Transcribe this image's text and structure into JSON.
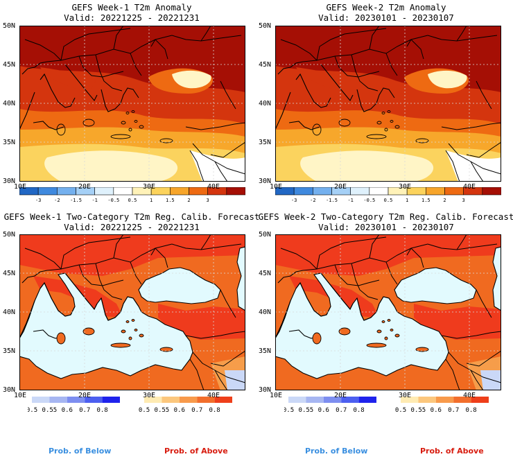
{
  "colors": {
    "sea": "#e2fafe",
    "land_above_strong": "#ef3b1d",
    "land_above_mid": "#f06a20",
    "land_above_light": "#f69d4a",
    "anom_c3": "#a50f05",
    "anom_c2": "#d4350e",
    "anom_c15": "#ee6a12",
    "anom_c1": "#f7a72b",
    "anom_c05": "#fbd35e",
    "anom_c0": "#fff5c6",
    "label_below": "#3a8fe0",
    "label_above": "#d81c0f"
  },
  "axes": {
    "y_top": [
      "50N",
      "45N",
      "40N",
      "35N",
      "30N"
    ],
    "x_top": [
      "10E",
      "20E",
      "30E",
      "40E"
    ],
    "y_bot": [
      "50N",
      "45N",
      "40N",
      "35N",
      "30N"
    ],
    "x_bot": [
      "10E",
      "20E",
      "30E",
      "40E"
    ]
  },
  "panels": {
    "tl": {
      "title": "GEFS Week-1 T2m Anomaly",
      "valid": "Valid: 20221225 - 20221231"
    },
    "tr": {
      "title": "GEFS Week-2 T2m Anomaly",
      "valid": "Valid: 20230101 - 20230107"
    },
    "bl": {
      "title": "GEFS Week-1 Two-Category T2m Reg. Calib. Forecast",
      "valid": "Valid: 20221225 - 20221231"
    },
    "br": {
      "title": "GEFS Week-2 Two-Category T2m Reg. Calib. Forecast",
      "valid": "Valid: 20230101 - 20230107"
    }
  },
  "anomaly_legend": {
    "ticks": [
      "-3",
      "-2",
      "-1.5",
      "-1",
      "-0.5",
      "0.5",
      "1",
      "1.5",
      "2",
      "3"
    ],
    "colors": [
      "#2167c4",
      "#3f89de",
      "#74b0ee",
      "#a5d0f6",
      "#dff1fc",
      "#ffffff",
      "#fff2b8",
      "#fcd35c",
      "#f7a52a",
      "#ee6a12",
      "#d4350e",
      "#a50f05"
    ]
  },
  "prob_legend": {
    "below_ticks": [
      "0.5",
      "0.55",
      "0.6",
      "0.7",
      "0.8"
    ],
    "below_colors": [
      "#cad8f7",
      "#a6b6f2",
      "#7d8ef0",
      "#4c5ff0",
      "#1f23ec"
    ],
    "above_ticks": [
      "0.5",
      "0.55",
      "0.6",
      "0.7",
      "0.8"
    ],
    "above_colors": [
      "#ffebb3",
      "#fcc77d",
      "#f89a4b",
      "#f26e2c",
      "#ee3f1a"
    ]
  },
  "labels": {
    "prob_below": "Prob. of Below",
    "prob_above": "Prob. of Above"
  }
}
